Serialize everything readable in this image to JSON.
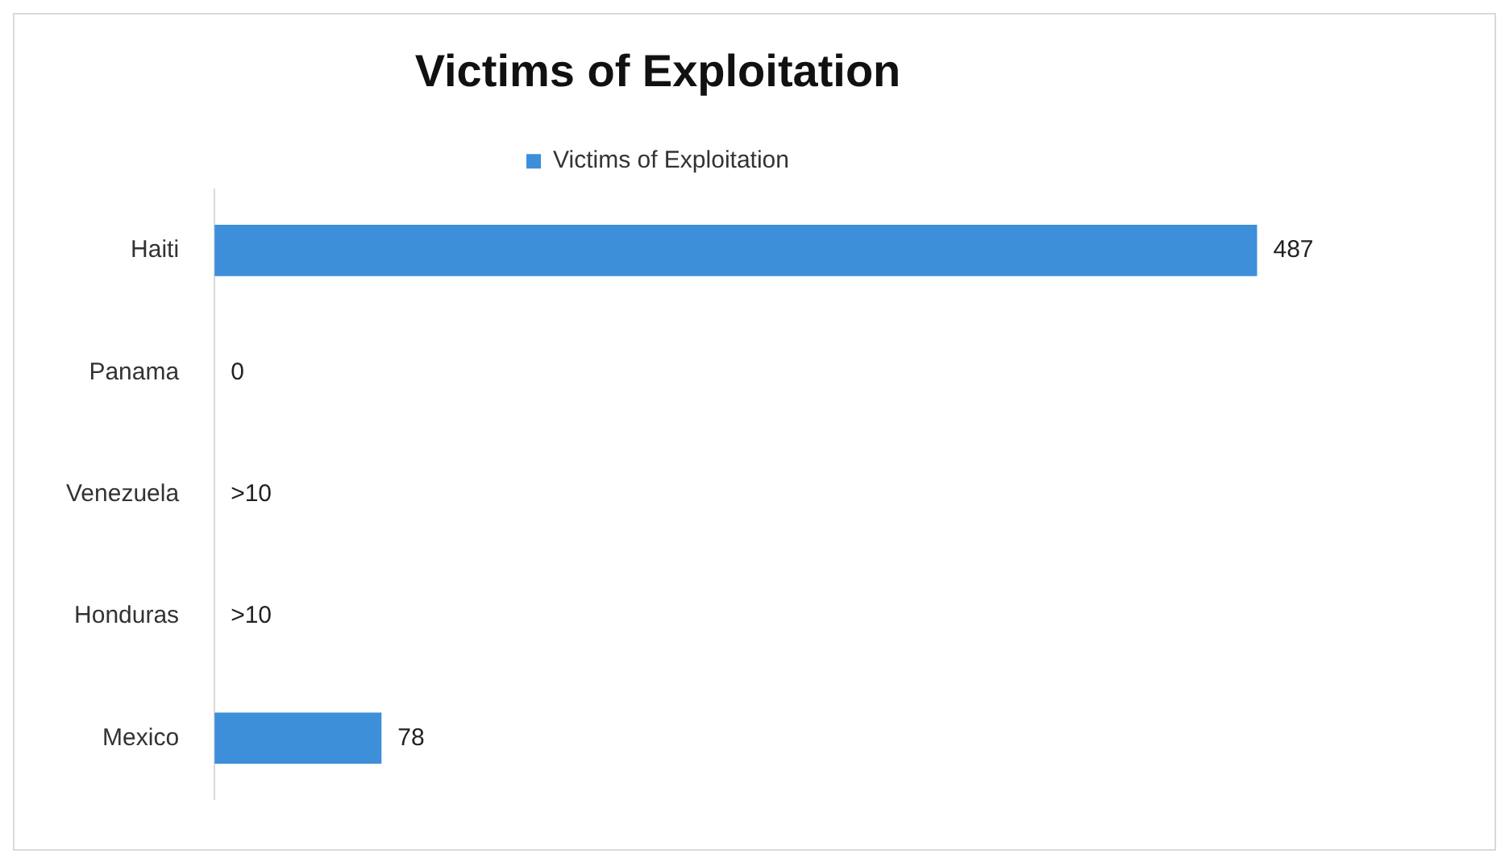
{
  "chart_data": {
    "type": "bar",
    "orientation": "horizontal",
    "title": "Victims of Exploitation",
    "categories": [
      "Haiti",
      "Panama",
      "Venezuela",
      "Honduras",
      "Mexico"
    ],
    "series": [
      {
        "name": "Victims of Exploitation",
        "color": "#3d8fd9",
        "values": [
          487,
          0,
          null,
          null,
          78
        ],
        "value_labels": [
          "487",
          "0",
          ">10",
          ">10",
          "78"
        ]
      }
    ],
    "tick_labels": "y",
    "legend": "top"
  }
}
